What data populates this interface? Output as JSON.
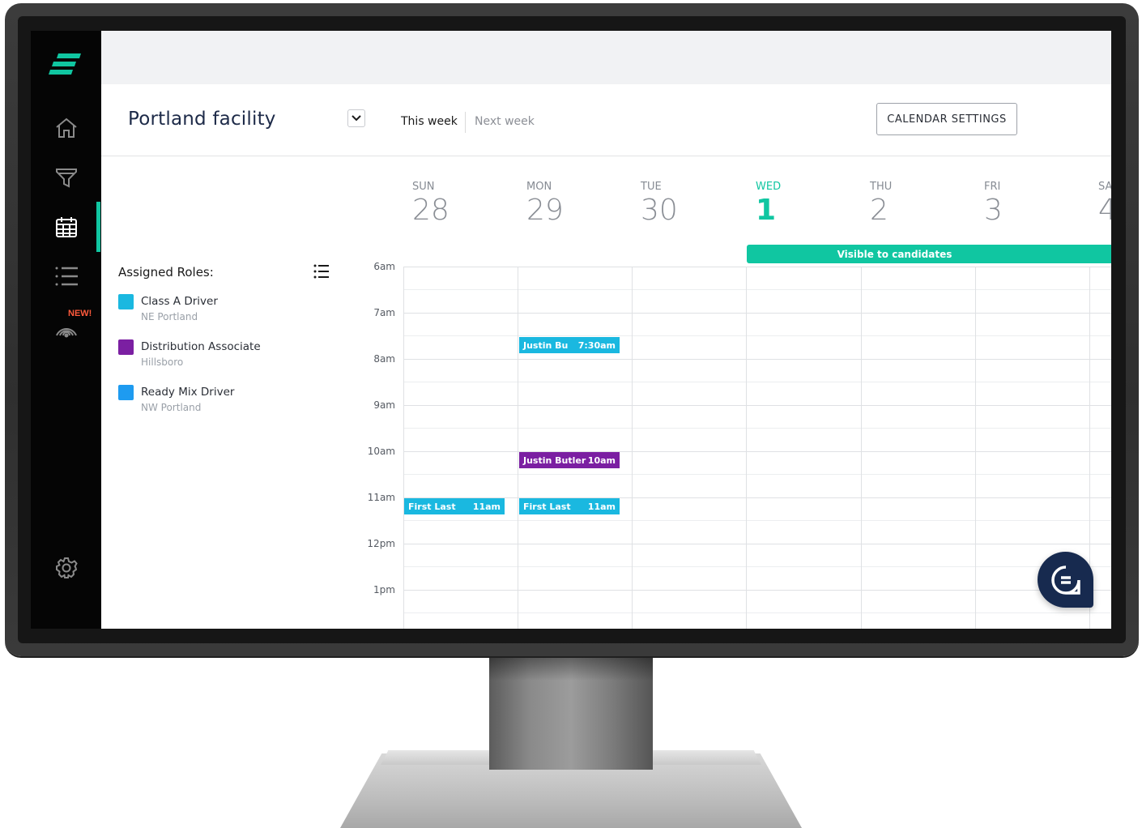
{
  "app": {
    "new_badge": "NEW!",
    "nav": [
      "home-icon",
      "funnel-icon",
      "calendar-icon",
      "list-icon",
      "broadcast-icon",
      "gear-icon"
    ],
    "accent_color": "#10c6a1"
  },
  "header": {
    "facility": "Portland facility",
    "tabs": {
      "this_week": "This week",
      "next_week": "Next week"
    },
    "settings_button": "CALENDAR SETTINGS"
  },
  "roles": {
    "title": "Assigned Roles:",
    "items": [
      {
        "name": "Class A Driver",
        "location": "NE Portland",
        "color": "#1ab8e0"
      },
      {
        "name": "Distribution Associate",
        "location": "Hillsboro",
        "color": "#7b1fa2"
      },
      {
        "name": "Ready Mix Driver",
        "location": "NW Portland",
        "color": "#1e9bf0"
      }
    ]
  },
  "calendar": {
    "days": [
      {
        "name": "SUN",
        "num": "28"
      },
      {
        "name": "MON",
        "num": "29"
      },
      {
        "name": "TUE",
        "num": "30"
      },
      {
        "name": "WED",
        "num": "1"
      },
      {
        "name": "THU",
        "num": "2"
      },
      {
        "name": "FRI",
        "num": "3"
      },
      {
        "name": "SA",
        "num": "4"
      }
    ],
    "today_index": 3,
    "banner": "Visible to candidates",
    "times": [
      "6am",
      "7am",
      "8am",
      "9am",
      "10am",
      "11am",
      "12pm",
      "1pm"
    ],
    "events": [
      {
        "name": "Justin Bu",
        "time": "7:30am",
        "day": 1,
        "color": "#1ab8e0"
      },
      {
        "name": "Justin Butler",
        "time": "10am",
        "day": 1,
        "color": "#7b1fa2"
      },
      {
        "name": "First Last",
        "time": "11am",
        "day": 0,
        "color": "#1ab8e0"
      },
      {
        "name": "First Last",
        "time": "11am",
        "day": 1,
        "color": "#1ab8e0"
      }
    ]
  }
}
